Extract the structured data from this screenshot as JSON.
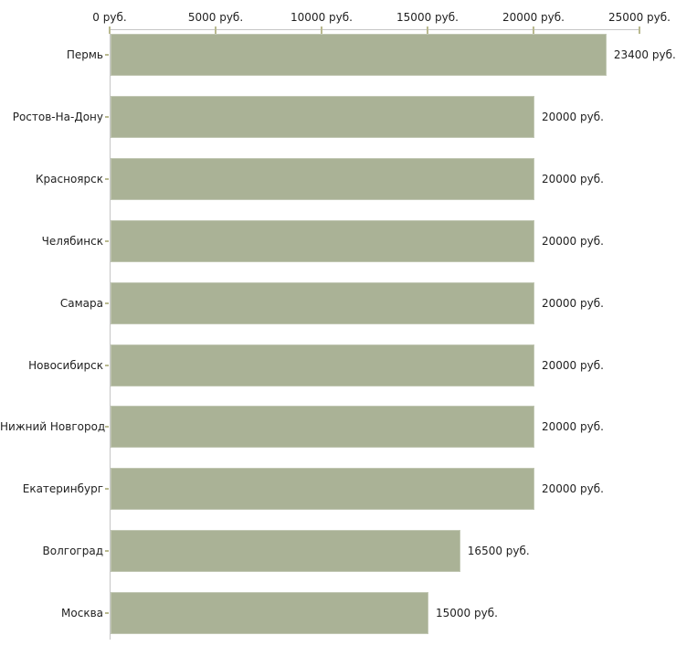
{
  "chart_data": {
    "type": "bar",
    "orientation": "horizontal",
    "title": "",
    "xlabel": "",
    "ylabel": "",
    "xlim": [
      0,
      25000
    ],
    "grid": false,
    "legend": false,
    "categories": [
      "Пермь",
      "Ростов-На-Дону",
      "Красноярск",
      "Челябинск",
      "Самара",
      "Новосибирск",
      "Нижний Новгород",
      "Екатеринбург",
      "Волгоград",
      "Москва"
    ],
    "values": [
      23400,
      20000,
      20000,
      20000,
      20000,
      20000,
      20000,
      20000,
      16500,
      15000
    ],
    "value_labels": [
      "23400 руб.",
      "20000 руб.",
      "20000 руб.",
      "20000 руб.",
      "20000 руб.",
      "20000 руб.",
      "20000 руб.",
      "20000 руб.",
      "16500 руб.",
      "15000 руб."
    ],
    "x_ticks": [
      0,
      5000,
      10000,
      15000,
      20000,
      25000
    ],
    "x_tick_labels": [
      "0 руб.",
      "5000 руб.",
      "10000 руб.",
      "15000 руб.",
      "20000 руб.",
      "25000 руб."
    ],
    "colors": {
      "bar": "#aab296",
      "axis_line": "#c6c6c6",
      "tick_mark": "#b9b98f",
      "text": "#1f1f1f",
      "background": "#ffffff"
    }
  }
}
